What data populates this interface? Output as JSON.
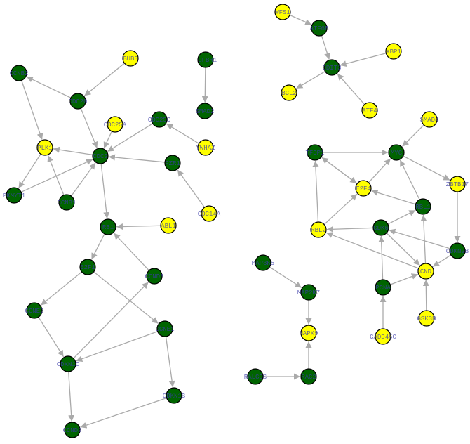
{
  "colors": {
    "yes": "#ffff00",
    "no": "#006400",
    "edge": "#aaaaaa",
    "border": "#000000",
    "label": "#3a3aa8"
  },
  "nodes": [
    {
      "id": "BUB3",
      "group": "yes"
    },
    {
      "id": "CCNB2",
      "group": "no"
    },
    {
      "id": "CDC20",
      "group": "no"
    },
    {
      "id": "TGFBR1",
      "group": "no"
    },
    {
      "id": "SMAD2",
      "group": "no"
    },
    {
      "id": "CDC25A",
      "group": "yes"
    },
    {
      "id": "CDC25C",
      "group": "no"
    },
    {
      "id": "PLK1",
      "group": "yes"
    },
    {
      "id": "CDC2",
      "group": "no"
    },
    {
      "id": "YWHAZ",
      "group": "yes"
    },
    {
      "id": "FZR1",
      "group": "no"
    },
    {
      "id": "PKMYT1",
      "group": "no"
    },
    {
      "id": "CCNB1",
      "group": "no"
    },
    {
      "id": "CDC14A",
      "group": "yes"
    },
    {
      "id": "RB1",
      "group": "no"
    },
    {
      "id": "ABL1",
      "group": "yes"
    },
    {
      "id": "E2F1",
      "group": "no"
    },
    {
      "id": "CCND3",
      "group": "no"
    },
    {
      "id": "CCNE2",
      "group": "no"
    },
    {
      "id": "CCNE1",
      "group": "no"
    },
    {
      "id": "CDKN1C",
      "group": "no"
    },
    {
      "id": "CDKN1B",
      "group": "no"
    },
    {
      "id": "CCND2",
      "group": "no"
    },
    {
      "id": "WFS1",
      "group": "yes"
    },
    {
      "id": "ATF6B",
      "group": "no"
    },
    {
      "id": "DDIT3",
      "group": "no"
    },
    {
      "id": "XBP1",
      "group": "yes"
    },
    {
      "id": "BCL2",
      "group": "yes"
    },
    {
      "id": "ATF4",
      "group": "yes"
    },
    {
      "id": "SMAD4",
      "group": "yes"
    },
    {
      "id": "TFDP1",
      "group": "no"
    },
    {
      "id": "MYC",
      "group": "no"
    },
    {
      "id": "E2F4",
      "group": "yes"
    },
    {
      "id": "ZBTB17",
      "group": "yes"
    },
    {
      "id": "RBL1",
      "group": "no"
    },
    {
      "id": "RBL2",
      "group": "yes"
    },
    {
      "id": "CDK6",
      "group": "no"
    },
    {
      "id": "CDKN2B",
      "group": "no"
    },
    {
      "id": "CCND1",
      "group": "yes"
    },
    {
      "id": "PCNA",
      "group": "no"
    },
    {
      "id": "GSK3B",
      "group": "yes"
    },
    {
      "id": "GADD45G",
      "group": "yes"
    },
    {
      "id": "MAP3K5",
      "group": "no"
    },
    {
      "id": "MAP2K7",
      "group": "no"
    },
    {
      "id": "MAPK9",
      "group": "yes"
    },
    {
      "id": "RALGDS",
      "group": "no"
    },
    {
      "id": "RAC2",
      "group": "no"
    }
  ],
  "edges": [
    [
      "BUB3",
      "CDC20"
    ],
    [
      "CDC20",
      "CCNB2"
    ],
    [
      "CCNB2",
      "PLK1"
    ],
    [
      "CDC20",
      "CDC2"
    ],
    [
      "CDC25A",
      "CDC2"
    ],
    [
      "CDC25C",
      "CDC2"
    ],
    [
      "YWHAZ",
      "CDC25C"
    ],
    [
      "TGFBR1",
      "SMAD2"
    ],
    [
      "CDC2",
      "PLK1"
    ],
    [
      "FZR1",
      "CDC2"
    ],
    [
      "CDC14A",
      "FZR1"
    ],
    [
      "PLK1",
      "PKMYT1"
    ],
    [
      "PKMYT1",
      "CDC2"
    ],
    [
      "CCNB1",
      "PLK1"
    ],
    [
      "CCNB1",
      "CDC2"
    ],
    [
      "CDC2",
      "RB1"
    ],
    [
      "ABL1",
      "RB1"
    ],
    [
      "RB1",
      "E2F1"
    ],
    [
      "CCND3",
      "RB1"
    ],
    [
      "E2F1",
      "CCNE2"
    ],
    [
      "E2F1",
      "CCNE1"
    ],
    [
      "CCNE2",
      "CDKN1C"
    ],
    [
      "CDKN1C",
      "CCND3"
    ],
    [
      "CCNE1",
      "CDKN1C"
    ],
    [
      "CCNE1",
      "CDKN1B"
    ],
    [
      "CDKN1C",
      "CCND2"
    ],
    [
      "CDKN1B",
      "CCND2"
    ],
    [
      "WFS1",
      "ATF6B"
    ],
    [
      "ATF6B",
      "DDIT3"
    ],
    [
      "XBP1",
      "DDIT3"
    ],
    [
      "DDIT3",
      "BCL2"
    ],
    [
      "ATF4",
      "DDIT3"
    ],
    [
      "SMAD4",
      "MYC"
    ],
    [
      "TFDP1",
      "MYC"
    ],
    [
      "TFDP1",
      "E2F4"
    ],
    [
      "E2F4",
      "TFDP1"
    ],
    [
      "E2F4",
      "MYC"
    ],
    [
      "MYC",
      "ZBTB17"
    ],
    [
      "RBL1",
      "MYC"
    ],
    [
      "RBL1",
      "E2F4"
    ],
    [
      "RBL2",
      "TFDP1"
    ],
    [
      "RBL2",
      "E2F4"
    ],
    [
      "ZBTB17",
      "CDKN2B"
    ],
    [
      "CDK6",
      "RBL1"
    ],
    [
      "CDK6",
      "RBL2"
    ],
    [
      "CDK6",
      "CCND1"
    ],
    [
      "CDKN2B",
      "CDK6"
    ],
    [
      "CDKN2B",
      "CCND1"
    ],
    [
      "CCND1",
      "RBL1"
    ],
    [
      "CCND1",
      "RBL2"
    ],
    [
      "PCNA",
      "CDK6"
    ],
    [
      "PCNA",
      "CCND1"
    ],
    [
      "GSK3B",
      "CCND1"
    ],
    [
      "GADD45G",
      "PCNA"
    ],
    [
      "MAP3K5",
      "MAP2K7"
    ],
    [
      "MAP2K7",
      "MAPK9"
    ],
    [
      "RAC2",
      "MAPK9"
    ],
    [
      "RALGDS",
      "RAC2"
    ]
  ]
}
